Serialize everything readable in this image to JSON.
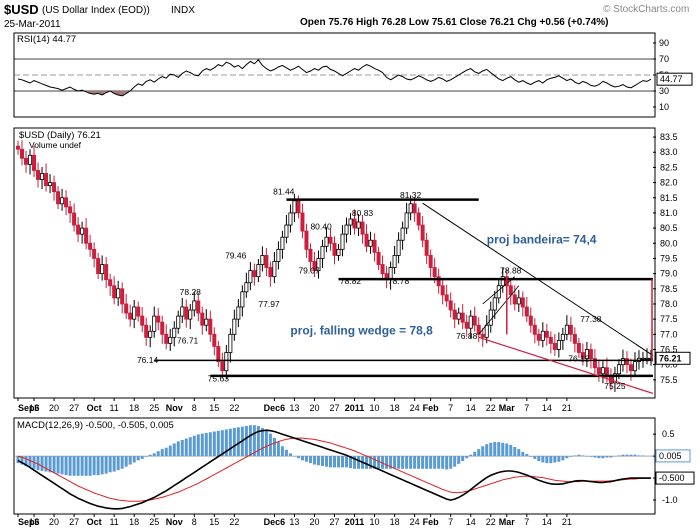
{
  "header": {
    "symbol": "$USD",
    "name": "(US Dollar Index (EOD))",
    "exchange": "INDX",
    "date": "25-Mar-2011",
    "ohlc_line": "Open 75.76   High 76.28   Low 75.61   Close 76.21   Chg +0.56 (+0.74%)",
    "watermark": "© StockCharts.com"
  },
  "chart_data": [
    {
      "type": "line",
      "title": "RSI(14) 44.77",
      "yticks": [
        "90",
        "70",
        "50",
        "30",
        "10"
      ],
      "ylim": [
        0,
        100
      ],
      "levels": [
        70,
        30
      ],
      "last_value_label": "44.77",
      "x": [
        0,
        1,
        2,
        3,
        4,
        5,
        6,
        7,
        8,
        9,
        10,
        11,
        12,
        13,
        14,
        15,
        16,
        17,
        18,
        19,
        20,
        21,
        22,
        23,
        24,
        25,
        26,
        27,
        28,
        29,
        30,
        31,
        32,
        33,
        34,
        35,
        36,
        37,
        38,
        39,
        40,
        41,
        42,
        43,
        44,
        45,
        46,
        47,
        48,
        49,
        50,
        51,
        52,
        53,
        54,
        55,
        56,
        57,
        58,
        59,
        60,
        61,
        62,
        63,
        64,
        65,
        66,
        67,
        68,
        69,
        70,
        71,
        72,
        73,
        74,
        75,
        76,
        77,
        78,
        79,
        80,
        81,
        82,
        83,
        84,
        85,
        86,
        87,
        88,
        89,
        90,
        91,
        92,
        93,
        94,
        95,
        96,
        97,
        98,
        99,
        100,
        101,
        102,
        103,
        104,
        105,
        106,
        107,
        108,
        109,
        110,
        111,
        112,
        113,
        114,
        115,
        116,
        117,
        118,
        119,
        120,
        121,
        122,
        123,
        124,
        125,
        126,
        127,
        128,
        129,
        130,
        131,
        132,
        133,
        134,
        135,
        136,
        137,
        138,
        139,
        140,
        141,
        142,
        143,
        144,
        145,
        146,
        147,
        148,
        149,
        150,
        151,
        152,
        153,
        154,
        155,
        156,
        157,
        158
      ],
      "values": [
        45,
        44,
        42,
        40,
        43,
        41,
        39,
        37,
        35,
        34,
        33,
        31,
        33,
        35,
        32,
        30,
        31,
        29,
        27,
        26,
        27,
        25,
        28,
        30,
        27,
        25,
        24,
        27,
        30,
        35,
        39,
        37,
        42,
        44,
        41,
        45,
        48,
        46,
        51,
        50,
        47,
        52,
        55,
        53,
        50,
        49,
        55,
        58,
        56,
        59,
        63,
        61,
        66,
        64,
        60,
        62,
        58,
        63,
        67,
        64,
        69,
        62,
        58,
        55,
        57,
        60,
        62,
        59,
        56,
        58,
        61,
        57,
        53,
        55,
        58,
        56,
        60,
        61,
        57,
        55,
        52,
        49,
        52,
        55,
        58,
        56,
        60,
        63,
        61,
        58,
        56,
        53,
        47,
        44,
        47,
        50,
        48,
        45,
        44,
        46,
        49,
        47,
        44,
        42,
        44,
        47,
        45,
        42,
        44,
        47,
        50,
        53,
        56,
        58,
        54,
        52,
        55,
        57,
        53,
        49,
        45,
        43,
        46,
        48,
        44,
        41,
        43,
        40,
        38,
        41,
        43,
        40,
        44,
        46,
        47,
        49,
        46,
        43,
        45,
        41,
        39,
        42,
        40,
        37,
        36,
        38,
        42,
        40,
        37,
        35,
        36,
        38,
        35,
        34,
        37,
        40,
        43,
        42,
        44.77
      ]
    },
    {
      "type": "candlestick",
      "title": "$USD (Daily) 76.21",
      "subtitle": "Volume undef",
      "yticks": [
        "83.5",
        "83.0",
        "82.5",
        "82.0",
        "81.5",
        "81.0",
        "80.5",
        "80.0",
        "79.5",
        "79.0",
        "78.5",
        "78.0",
        "77.5",
        "77.0",
        "76.5",
        "76.0",
        "75.5"
      ],
      "ylim": [
        75.0,
        83.7
      ],
      "last_value_label": "76.21",
      "x_labels": [
        "Sep6",
        "13",
        "20",
        "27",
        "Oct",
        "11",
        "18",
        "25",
        "Nov",
        "8",
        "15",
        "22",
        "Dec6",
        "13",
        "20",
        "27",
        "2011",
        "10",
        "18",
        "24",
        "Feb",
        "7",
        "14",
        "22",
        "Mar",
        "7",
        "14",
        "21"
      ],
      "annotations": [
        "81.44",
        "80.40",
        "81.32",
        "80.83",
        "79.46",
        "79.07",
        "78.82",
        "78.78",
        "77.97",
        "78.28",
        "76.71",
        "76.14",
        "75.63",
        "78.88",
        "77.38",
        "76.88",
        "76.12",
        "75.25"
      ],
      "text_notes": [
        "proj bandeira= 74,4",
        "proj. falling wedge = 78,8"
      ],
      "horizontal_levels": [
        81.44,
        78.82,
        76.14,
        75.63
      ],
      "closes": [
        83.1,
        82.8,
        82.6,
        82.9,
        82.4,
        82.1,
        82.3,
        81.9,
        82.0,
        81.7,
        81.3,
        81.5,
        81.2,
        81.0,
        80.6,
        80.3,
        80.5,
        80.0,
        79.8,
        79.5,
        79.0,
        79.3,
        78.8,
        78.6,
        78.2,
        78.5,
        78.0,
        77.7,
        77.5,
        77.9,
        77.6,
        77.3,
        76.9,
        77.1,
        77.6,
        77.4,
        77.0,
        76.7,
        76.9,
        77.2,
        77.6,
        77.9,
        77.5,
        77.8,
        78.1,
        77.7,
        77.3,
        77.5,
        77.0,
        76.6,
        76.1,
        75.8,
        76.4,
        77.0,
        77.5,
        77.9,
        78.4,
        78.7,
        79.1,
        78.9,
        79.3,
        79.6,
        79.2,
        78.9,
        79.4,
        79.8,
        80.2,
        80.6,
        81.0,
        81.4,
        81.0,
        80.4,
        79.8,
        79.4,
        79.1,
        79.5,
        79.9,
        80.2,
        80.0,
        79.6,
        79.8,
        80.3,
        80.6,
        80.8,
        80.5,
        80.7,
        80.3,
        79.9,
        80.1,
        79.7,
        79.3,
        79.0,
        78.8,
        79.2,
        79.6,
        80.1,
        80.5,
        81.0,
        81.3,
        81.0,
        80.6,
        80.1,
        79.6,
        79.2,
        78.9,
        78.6,
        78.3,
        78.1,
        77.8,
        77.5,
        77.7,
        77.4,
        77.2,
        77.6,
        77.3,
        77.0,
        76.9,
        77.3,
        77.8,
        78.2,
        78.6,
        78.9,
        78.6,
        78.3,
        78.0,
        78.2,
        77.9,
        77.6,
        77.3,
        77.0,
        76.8,
        77.1,
        76.9,
        76.7,
        76.5,
        76.8,
        77.0,
        77.3,
        77.0,
        76.7,
        76.4,
        76.2,
        76.5,
        76.2,
        75.9,
        75.7,
        75.9,
        75.6,
        75.4,
        75.7,
        76.0,
        76.2,
        76.0,
        75.8,
        76.1,
        76.21,
        76.21,
        76.21,
        76.21
      ]
    },
    {
      "type": "line",
      "title": "MACD(12,26,9) -0.500, -0.505, 0.005",
      "yticks": [
        "0.5",
        "0.0",
        "-0.5",
        "-1.0"
      ],
      "ylim": [
        -1.25,
        0.8
      ],
      "last_value_labels": [
        "0.005",
        "-0.500"
      ],
      "x": [
        0,
        1,
        2,
        3,
        4,
        5,
        6,
        7,
        8,
        9,
        10,
        11,
        12,
        13,
        14,
        15,
        16,
        17,
        18,
        19,
        20,
        21,
        22,
        23,
        24,
        25,
        26,
        27,
        28,
        29,
        30,
        31,
        32,
        33,
        34,
        35,
        36,
        37,
        38,
        39,
        40,
        41,
        42,
        43,
        44,
        45,
        46,
        47,
        48,
        49,
        50,
        51,
        52,
        53,
        54,
        55,
        56,
        57,
        58,
        59,
        60,
        61,
        62,
        63,
        64,
        65,
        66,
        67,
        68,
        69,
        70,
        71,
        72,
        73,
        74,
        75,
        76,
        77,
        78,
        79,
        80,
        81,
        82,
        83,
        84,
        85,
        86,
        87,
        88,
        89,
        90,
        91,
        92,
        93,
        94,
        95,
        96,
        97,
        98,
        99,
        100,
        101,
        102,
        103,
        104,
        105,
        106,
        107,
        108,
        109,
        110,
        111,
        112,
        113,
        114,
        115,
        116,
        117,
        118,
        119,
        120,
        121,
        122,
        123,
        124,
        125,
        126,
        127,
        128,
        129,
        130,
        131,
        132,
        133,
        134,
        135,
        136,
        137,
        138,
        139,
        140,
        141,
        142,
        143,
        144,
        145,
        146,
        147,
        148,
        149,
        150,
        151,
        152,
        153,
        154,
        155,
        156,
        157,
        158
      ],
      "series": [
        {
          "name": "MACD",
          "values": [
            -0.1,
            -0.15,
            -0.2,
            -0.26,
            -0.32,
            -0.38,
            -0.44,
            -0.5,
            -0.56,
            -0.62,
            -0.68,
            -0.74,
            -0.8,
            -0.86,
            -0.91,
            -0.96,
            -1.0,
            -1.04,
            -1.08,
            -1.11,
            -1.14,
            -1.16,
            -1.18,
            -1.19,
            -1.2,
            -1.2,
            -1.19,
            -1.17,
            -1.15,
            -1.12,
            -1.09,
            -1.06,
            -1.02,
            -0.98,
            -0.94,
            -0.89,
            -0.84,
            -0.79,
            -0.73,
            -0.67,
            -0.61,
            -0.55,
            -0.49,
            -0.43,
            -0.37,
            -0.31,
            -0.25,
            -0.19,
            -0.13,
            -0.07,
            -0.01,
            0.05,
            0.11,
            0.17,
            0.23,
            0.29,
            0.35,
            0.41,
            0.47,
            0.52,
            0.56,
            0.58,
            0.59,
            0.58,
            0.56,
            0.53,
            0.5,
            0.47,
            0.44,
            0.41,
            0.38,
            0.35,
            0.32,
            0.29,
            0.26,
            0.23,
            0.2,
            0.17,
            0.14,
            0.11,
            0.08,
            0.05,
            0.02,
            -0.02,
            -0.06,
            -0.1,
            -0.14,
            -0.18,
            -0.22,
            -0.26,
            -0.3,
            -0.34,
            -0.38,
            -0.42,
            -0.46,
            -0.5,
            -0.54,
            -0.58,
            -0.62,
            -0.66,
            -0.7,
            -0.74,
            -0.78,
            -0.82,
            -0.86,
            -0.9,
            -0.94,
            -0.98,
            -1.0,
            -0.98,
            -0.94,
            -0.89,
            -0.83,
            -0.76,
            -0.69,
            -0.62,
            -0.55,
            -0.49,
            -0.44,
            -0.4,
            -0.37,
            -0.35,
            -0.34,
            -0.34,
            -0.35,
            -0.37,
            -0.4,
            -0.43,
            -0.47,
            -0.51,
            -0.55,
            -0.58,
            -0.61,
            -0.63,
            -0.64,
            -0.64,
            -0.63,
            -0.61,
            -0.59,
            -0.57,
            -0.56,
            -0.56,
            -0.57,
            -0.58,
            -0.59,
            -0.6,
            -0.6,
            -0.59,
            -0.58,
            -0.56,
            -0.54,
            -0.52,
            -0.51,
            -0.5,
            -0.5,
            -0.5,
            -0.5,
            -0.5,
            -0.5
          ]
        },
        {
          "name": "Signal",
          "values": [
            0.0,
            -0.03,
            -0.06,
            -0.1,
            -0.14,
            -0.18,
            -0.23,
            -0.28,
            -0.33,
            -0.38,
            -0.43,
            -0.48,
            -0.53,
            -0.58,
            -0.63,
            -0.68,
            -0.72,
            -0.76,
            -0.8,
            -0.84,
            -0.87,
            -0.9,
            -0.93,
            -0.96,
            -0.98,
            -1.0,
            -1.01,
            -1.02,
            -1.03,
            -1.03,
            -1.03,
            -1.02,
            -1.01,
            -1.0,
            -0.98,
            -0.96,
            -0.94,
            -0.91,
            -0.88,
            -0.85,
            -0.82,
            -0.78,
            -0.74,
            -0.7,
            -0.66,
            -0.62,
            -0.57,
            -0.52,
            -0.47,
            -0.42,
            -0.37,
            -0.32,
            -0.27,
            -0.22,
            -0.17,
            -0.12,
            -0.07,
            -0.02,
            0.03,
            0.08,
            0.13,
            0.18,
            0.22,
            0.26,
            0.3,
            0.33,
            0.36,
            0.38,
            0.4,
            0.41,
            0.41,
            0.41,
            0.4,
            0.39,
            0.38,
            0.36,
            0.34,
            0.32,
            0.3,
            0.27,
            0.24,
            0.21,
            0.18,
            0.15,
            0.12,
            0.08,
            0.04,
            0.0,
            -0.04,
            -0.08,
            -0.12,
            -0.16,
            -0.2,
            -0.24,
            -0.28,
            -0.32,
            -0.36,
            -0.4,
            -0.44,
            -0.48,
            -0.52,
            -0.56,
            -0.6,
            -0.64,
            -0.68,
            -0.72,
            -0.76,
            -0.79,
            -0.82,
            -0.83,
            -0.83,
            -0.82,
            -0.8,
            -0.78,
            -0.75,
            -0.72,
            -0.69,
            -0.66,
            -0.63,
            -0.6,
            -0.57,
            -0.54,
            -0.52,
            -0.5,
            -0.48,
            -0.47,
            -0.46,
            -0.46,
            -0.46,
            -0.47,
            -0.48,
            -0.49,
            -0.51,
            -0.53,
            -0.55,
            -0.56,
            -0.57,
            -0.58,
            -0.58,
            -0.58,
            -0.58,
            -0.57,
            -0.57,
            -0.57,
            -0.57,
            -0.57,
            -0.57,
            -0.57,
            -0.56,
            -0.56,
            -0.55,
            -0.54,
            -0.53,
            -0.52,
            -0.52,
            -0.51,
            -0.51,
            -0.505,
            -0.505
          ]
        }
      ]
    }
  ]
}
